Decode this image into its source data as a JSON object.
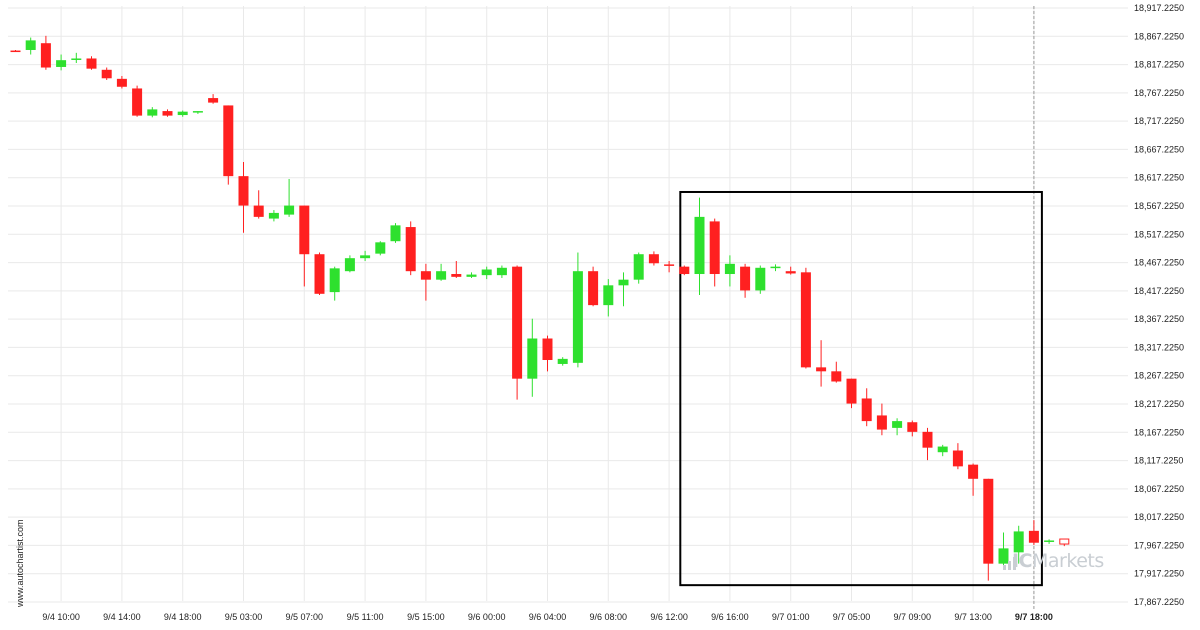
{
  "site": "www.autochartist.com",
  "brand": {
    "prefix": "IC",
    "name": "Markets"
  },
  "colors": {
    "up": "#2ee02e",
    "down": "#ff2020",
    "grid": "#e9e9e9",
    "pattern_box": "#000000",
    "current_marker": "#999999"
  },
  "chart_data": {
    "type": "candlestick",
    "y_ticks": [
      "17,867.2250",
      "17,917.2250",
      "17,967.2250",
      "18,017.2250",
      "18,067.2250",
      "18,117.2250",
      "18,167.2250",
      "18,217.2250",
      "18,267.2250",
      "18,317.2250",
      "18,367.2250",
      "18,417.2250",
      "18,467.2250",
      "18,517.2250",
      "18,567.2250",
      "18,617.2250",
      "18,667.2250",
      "18,717.2250",
      "18,767.2250",
      "18,817.2250",
      "18,867.2250",
      "18,917.2250"
    ],
    "ylim": [
      17867.225,
      18917.225
    ],
    "x_ticks": [
      {
        "label": "9/4 10:00",
        "index": 3
      },
      {
        "label": "9/4 14:00",
        "index": 7
      },
      {
        "label": "9/4 18:00",
        "index": 11
      },
      {
        "label": "9/5 03:00",
        "index": 15
      },
      {
        "label": "9/5 07:00",
        "index": 19
      },
      {
        "label": "9/5 11:00",
        "index": 23
      },
      {
        "label": "9/5 15:00",
        "index": 27
      },
      {
        "label": "9/6 00:00",
        "index": 31
      },
      {
        "label": "9/6 04:00",
        "index": 35
      },
      {
        "label": "9/6 08:00",
        "index": 39
      },
      {
        "label": "9/6 12:00",
        "index": 43
      },
      {
        "label": "9/6 16:00",
        "index": 47
      },
      {
        "label": "9/7 01:00",
        "index": 51
      },
      {
        "label": "9/7 05:00",
        "index": 55
      },
      {
        "label": "9/7 09:00",
        "index": 59
      },
      {
        "label": "9/7 13:00",
        "index": 63
      },
      {
        "label": "9/7 18:00",
        "index": 67,
        "bold": true
      }
    ],
    "candles": [
      {
        "o": 18842,
        "h": 18843,
        "l": 18840,
        "c": 18840
      },
      {
        "o": 18843,
        "h": 18865,
        "l": 18835,
        "c": 18860
      },
      {
        "o": 18855,
        "h": 18868,
        "l": 18808,
        "c": 18812
      },
      {
        "o": 18813,
        "h": 18835,
        "l": 18807,
        "c": 18825
      },
      {
        "o": 18828,
        "h": 18838,
        "l": 18820,
        "c": 18828
      },
      {
        "o": 18828,
        "h": 18832,
        "l": 18808,
        "c": 18810
      },
      {
        "o": 18808,
        "h": 18812,
        "l": 18790,
        "c": 18793
      },
      {
        "o": 18792,
        "h": 18797,
        "l": 18775,
        "c": 18778
      },
      {
        "o": 18775,
        "h": 18780,
        "l": 18725,
        "c": 18727
      },
      {
        "o": 18727,
        "h": 18742,
        "l": 18724,
        "c": 18738
      },
      {
        "o": 18735,
        "h": 18738,
        "l": 18725,
        "c": 18727
      },
      {
        "o": 18728,
        "h": 18736,
        "l": 18725,
        "c": 18734
      },
      {
        "o": 18733,
        "h": 18735,
        "l": 18730,
        "c": 18735
      },
      {
        "o": 18758,
        "h": 18765,
        "l": 18748,
        "c": 18750
      },
      {
        "o": 18745,
        "h": 18745,
        "l": 18605,
        "c": 18620
      },
      {
        "o": 18620,
        "h": 18645,
        "l": 18520,
        "c": 18568
      },
      {
        "o": 18568,
        "h": 18595,
        "l": 18545,
        "c": 18548
      },
      {
        "o": 18545,
        "h": 18560,
        "l": 18540,
        "c": 18555
      },
      {
        "o": 18552,
        "h": 18615,
        "l": 18548,
        "c": 18568
      },
      {
        "o": 18568,
        "h": 18568,
        "l": 18425,
        "c": 18482
      },
      {
        "o": 18482,
        "h": 18485,
        "l": 18410,
        "c": 18412
      },
      {
        "o": 18415,
        "h": 18460,
        "l": 18400,
        "c": 18457
      },
      {
        "o": 18452,
        "h": 18480,
        "l": 18450,
        "c": 18475
      },
      {
        "o": 18475,
        "h": 18488,
        "l": 18470,
        "c": 18480
      },
      {
        "o": 18483,
        "h": 18505,
        "l": 18480,
        "c": 18503
      },
      {
        "o": 18505,
        "h": 18537,
        "l": 18502,
        "c": 18533
      },
      {
        "o": 18530,
        "h": 18540,
        "l": 18445,
        "c": 18452
      },
      {
        "o": 18452,
        "h": 18465,
        "l": 18400,
        "c": 18437
      },
      {
        "o": 18437,
        "h": 18465,
        "l": 18435,
        "c": 18452
      },
      {
        "o": 18447,
        "h": 18470,
        "l": 18440,
        "c": 18442
      },
      {
        "o": 18442,
        "h": 18450,
        "l": 18440,
        "c": 18446
      },
      {
        "o": 18445,
        "h": 18460,
        "l": 18438,
        "c": 18455
      },
      {
        "o": 18445,
        "h": 18462,
        "l": 18440,
        "c": 18458
      },
      {
        "o": 18460,
        "h": 18462,
        "l": 18225,
        "c": 18262
      },
      {
        "o": 18262,
        "h": 18368,
        "l": 18230,
        "c": 18333
      },
      {
        "o": 18333,
        "h": 18338,
        "l": 18275,
        "c": 18295
      },
      {
        "o": 18288,
        "h": 18300,
        "l": 18285,
        "c": 18297
      },
      {
        "o": 18290,
        "h": 18485,
        "l": 18282,
        "c": 18452
      },
      {
        "o": 18452,
        "h": 18460,
        "l": 18390,
        "c": 18392
      },
      {
        "o": 18392,
        "h": 18438,
        "l": 18372,
        "c": 18427
      },
      {
        "o": 18427,
        "h": 18450,
        "l": 18390,
        "c": 18437
      },
      {
        "o": 18437,
        "h": 18485,
        "l": 18430,
        "c": 18482
      },
      {
        "o": 18482,
        "h": 18487,
        "l": 18462,
        "c": 18466
      },
      {
        "o": 18464,
        "h": 18470,
        "l": 18450,
        "c": 18462
      },
      {
        "o": 18460,
        "h": 18462,
        "l": 18445,
        "c": 18447
      },
      {
        "o": 18447,
        "h": 18582,
        "l": 18410,
        "c": 18548
      },
      {
        "o": 18540,
        "h": 18545,
        "l": 18425,
        "c": 18447
      },
      {
        "o": 18447,
        "h": 18480,
        "l": 18425,
        "c": 18465
      },
      {
        "o": 18460,
        "h": 18465,
        "l": 18405,
        "c": 18418
      },
      {
        "o": 18418,
        "h": 18462,
        "l": 18412,
        "c": 18458
      },
      {
        "o": 18458,
        "h": 18464,
        "l": 18452,
        "c": 18460
      },
      {
        "o": 18452,
        "h": 18460,
        "l": 18446,
        "c": 18448
      },
      {
        "o": 18450,
        "h": 18458,
        "l": 18280,
        "c": 18282
      },
      {
        "o": 18282,
        "h": 18330,
        "l": 18248,
        "c": 18275
      },
      {
        "o": 18275,
        "h": 18292,
        "l": 18255,
        "c": 18257
      },
      {
        "o": 18262,
        "h": 18262,
        "l": 18210,
        "c": 18218
      },
      {
        "o": 18227,
        "h": 18245,
        "l": 18178,
        "c": 18187
      },
      {
        "o": 18197,
        "h": 18218,
        "l": 18162,
        "c": 18172
      },
      {
        "o": 18175,
        "h": 18192,
        "l": 18162,
        "c": 18187
      },
      {
        "o": 18185,
        "h": 18188,
        "l": 18160,
        "c": 18168
      },
      {
        "o": 18168,
        "h": 18175,
        "l": 18118,
        "c": 18140
      },
      {
        "o": 18132,
        "h": 18145,
        "l": 18125,
        "c": 18142
      },
      {
        "o": 18135,
        "h": 18148,
        "l": 18102,
        "c": 18107
      },
      {
        "o": 18110,
        "h": 18112,
        "l": 18055,
        "c": 18085
      },
      {
        "o": 18085,
        "h": 18085,
        "l": 17905,
        "c": 17935
      },
      {
        "o": 17935,
        "h": 17990,
        "l": 17925,
        "c": 17962
      },
      {
        "o": 17955,
        "h": 18002,
        "l": 17935,
        "c": 17992
      },
      {
        "o": 17993,
        "h": 18012,
        "l": 17968,
        "c": 17972
      },
      {
        "o": 17974,
        "h": 17978,
        "l": 17970,
        "c": 17976
      },
      {
        "o": 17975,
        "h": 17978,
        "l": 17966,
        "c": 17967,
        "current": true
      }
    ],
    "pattern_box": {
      "start_index": 44,
      "end_index": 67,
      "high": 18592,
      "low": 17897
    },
    "current_time_index": 67
  }
}
